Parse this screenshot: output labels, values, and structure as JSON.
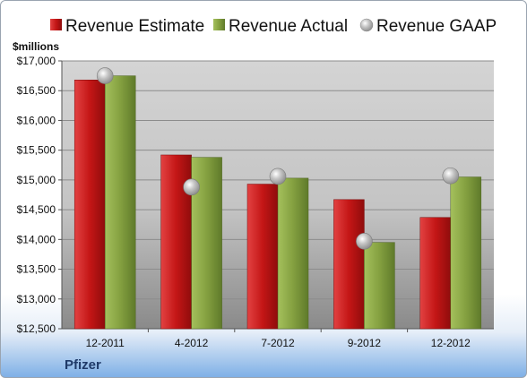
{
  "chart_data": {
    "type": "bar",
    "company": "Pfizer",
    "unit_label": "$millions",
    "categories": [
      "12-2011",
      "4-2012",
      "7-2012",
      "9-2012",
      "12-2012"
    ],
    "series": [
      {
        "name": "Revenue Estimate",
        "kind": "bar",
        "values": [
          16680,
          15420,
          14930,
          14670,
          14370
        ]
      },
      {
        "name": "Revenue Actual",
        "kind": "bar",
        "values": [
          16750,
          15380,
          15030,
          13950,
          15050
        ]
      },
      {
        "name": "Revenue GAAP",
        "kind": "point",
        "values": [
          16750,
          14880,
          15060,
          13970,
          15070
        ]
      }
    ],
    "ylim": [
      12500,
      17000
    ],
    "yticks": [
      17000,
      16500,
      16000,
      15500,
      15000,
      14500,
      14000,
      13500,
      13000,
      12500
    ],
    "ytick_labels": [
      "$17,000",
      "$16,500",
      "$16,000",
      "$15,500",
      "$15,000",
      "$14,500",
      "$14,000",
      "$13,500",
      "$13,000",
      "$12,500"
    ],
    "grid": true,
    "legend_position": "top",
    "colors": {
      "estimate": "#cc1f1f",
      "actual": "#8aa64a",
      "gaap": "#b8b8b8"
    }
  }
}
